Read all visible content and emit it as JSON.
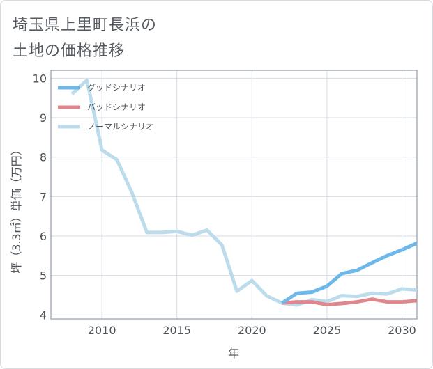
{
  "title_lines": [
    "埼玉県上里町長浜の",
    "土地の価格推移"
  ],
  "colors": {
    "good": "#6cb8ea",
    "bad": "#e0868d",
    "normal": "#bcdcec",
    "grid": "#d4dbe3",
    "axis": "#7d8a9c"
  },
  "chart_data": {
    "type": "line",
    "title": "",
    "xlabel": "年",
    "ylabel": "坪（3.3㎡）単価（万円）",
    "xlim": [
      2006.6,
      2031
    ],
    "ylim": [
      3.9,
      10.2
    ],
    "xticks": [
      2010,
      2015,
      2020,
      2025,
      2030
    ],
    "yticks": [
      4,
      5,
      6,
      7,
      8,
      9,
      10
    ],
    "grid": true,
    "legend_position": "top-left",
    "series": [
      {
        "name": "グッドシナリオ",
        "color_key": "good",
        "x": [
          2022,
          2023,
          2024,
          2025,
          2026,
          2027,
          2028,
          2029,
          2030,
          2031
        ],
        "y": [
          4.3,
          4.55,
          4.58,
          4.73,
          5.05,
          5.13,
          5.32,
          5.5,
          5.65,
          5.82
        ]
      },
      {
        "name": "バッドシナリオ",
        "color_key": "bad",
        "x": [
          2022,
          2023,
          2024,
          2025,
          2026,
          2027,
          2028,
          2029,
          2030,
          2031
        ],
        "y": [
          4.3,
          4.33,
          4.33,
          4.26,
          4.29,
          4.33,
          4.4,
          4.33,
          4.33,
          4.36
        ]
      },
      {
        "name": "ノーマルシナリオ",
        "color_key": "normal",
        "x": [
          2008,
          2009,
          2010,
          2011,
          2012,
          2013,
          2014,
          2015,
          2016,
          2017,
          2018,
          2019,
          2020,
          2021,
          2022,
          2023,
          2024,
          2025,
          2026,
          2027,
          2028,
          2029,
          2030,
          2031
        ],
        "y": [
          9.6,
          9.95,
          8.18,
          7.93,
          7.1,
          6.09,
          6.09,
          6.12,
          6.02,
          6.15,
          5.77,
          4.6,
          4.87,
          4.48,
          4.3,
          4.25,
          4.39,
          4.34,
          4.49,
          4.47,
          4.55,
          4.53,
          4.66,
          4.63
        ]
      }
    ]
  }
}
